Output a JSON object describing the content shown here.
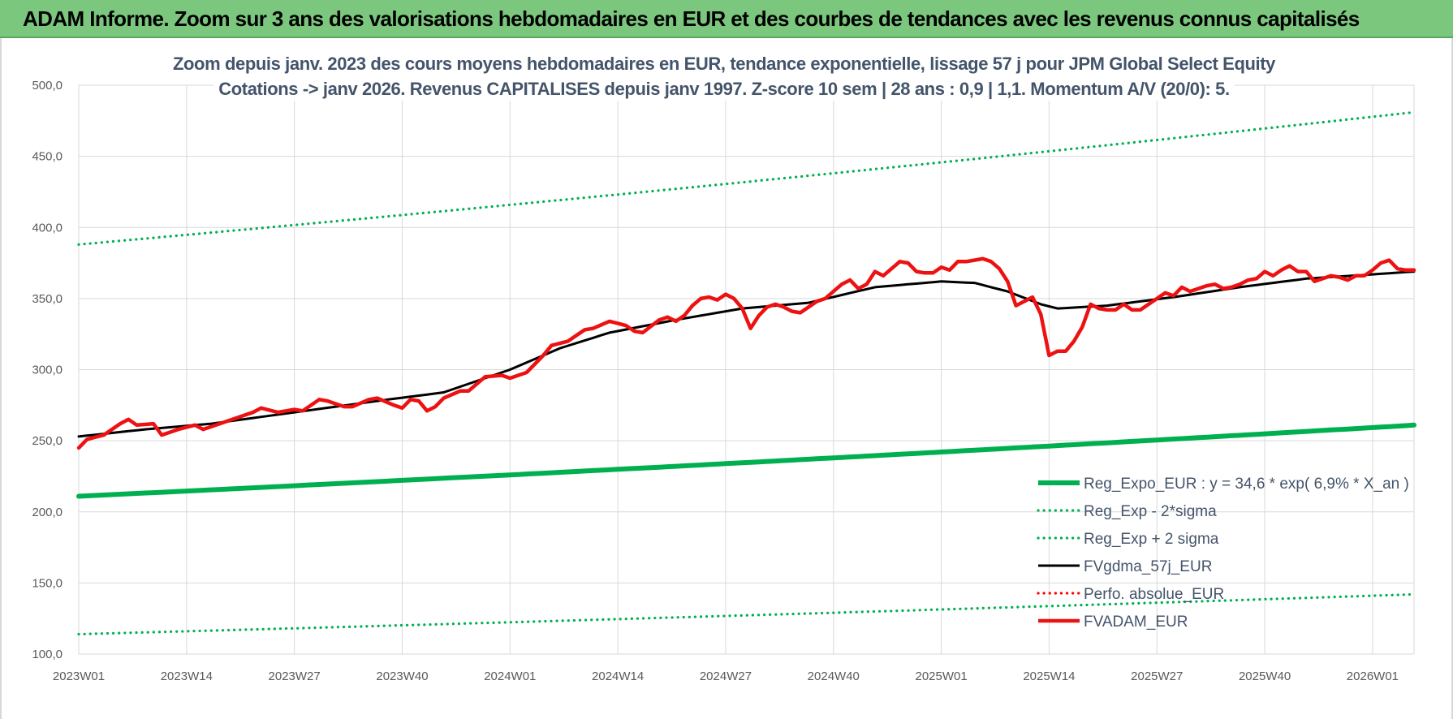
{
  "banner": {
    "title": "ADAM Informe. Zoom sur 3 ans des valorisations hebdomadaires en EUR et des courbes de tendances avec les revenus connus capitalisés",
    "bg_color": "#7bc77e"
  },
  "chart_data": {
    "type": "line",
    "title": [
      "Zoom depuis janv. 2023 des cours moyens hebdomadaires en EUR, tendance exponentielle, lissage 57 j pour JPM Global Select Equity",
      "Cotations -> janv 2026. Revenus CAPITALISES depuis janv 1997. Z-score 10 sem | 28 ans : 0,9 | 1,1. Momentum A/V (20/0): 5."
    ],
    "xlabel": "",
    "ylabel": "",
    "ylim": [
      100,
      500
    ],
    "yticks": [
      100,
      150,
      200,
      250,
      300,
      350,
      400,
      450,
      500
    ],
    "ytick_labels": [
      "100,0",
      "150,0",
      "200,0",
      "250,0",
      "300,0",
      "350,0",
      "400,0",
      "450,0",
      "500,0"
    ],
    "n_weeks": 162,
    "xtick_indices": [
      0,
      13,
      26,
      39,
      52,
      65,
      78,
      91,
      104,
      117,
      130,
      143,
      156
    ],
    "xtick_labels": [
      "2023W01",
      "2023W14",
      "2023W27",
      "2023W40",
      "2024W01",
      "2024W14",
      "2024W27",
      "2024W40",
      "2025W01",
      "2025W14",
      "2025W27",
      "2025W40",
      "2026W01"
    ],
    "grid": true,
    "legend_position": "bottom-right",
    "series": [
      {
        "name": "Reg_Expo_EUR : y = 34,6 * exp( 6,9% *  X_an )",
        "style": "solid-thick",
        "color": "#00b050",
        "start": 211,
        "end": 261,
        "growth": "exponential"
      },
      {
        "name": "Reg_Exp - 2*sigma",
        "style": "dotted",
        "color": "#00b050",
        "start": 114,
        "end": 142,
        "growth": "exponential"
      },
      {
        "name": "Reg_Exp + 2 sigma",
        "style": "dotted",
        "color": "#00b050",
        "start": 388,
        "end": 481,
        "growth": "exponential"
      },
      {
        "name": "FVgdma_57j_EUR",
        "style": "solid",
        "color": "#000000",
        "anchors": [
          [
            0,
            253
          ],
          [
            8,
            258
          ],
          [
            16,
            262
          ],
          [
            26,
            270
          ],
          [
            36,
            278
          ],
          [
            44,
            284
          ],
          [
            52,
            300
          ],
          [
            58,
            315
          ],
          [
            64,
            326
          ],
          [
            72,
            335
          ],
          [
            80,
            343
          ],
          [
            88,
            347
          ],
          [
            96,
            358
          ],
          [
            104,
            362
          ],
          [
            108,
            361
          ],
          [
            112,
            355
          ],
          [
            116,
            346
          ],
          [
            118,
            343
          ],
          [
            124,
            345
          ],
          [
            132,
            351
          ],
          [
            140,
            358
          ],
          [
            148,
            364
          ],
          [
            156,
            367
          ],
          [
            161,
            369
          ]
        ]
      },
      {
        "name": "Perfo. absolue_EUR",
        "style": "dotted",
        "color": "#ff0000",
        "hidden_in_plot": true
      },
      {
        "name": "FVADAM_EUR",
        "style": "solid-thick",
        "color": "#ee1111",
        "anchors": [
          [
            0,
            245
          ],
          [
            1,
            251
          ],
          [
            3,
            254
          ],
          [
            5,
            262
          ],
          [
            6,
            265
          ],
          [
            7,
            261
          ],
          [
            9,
            262
          ],
          [
            10,
            254
          ],
          [
            12,
            258
          ],
          [
            14,
            261
          ],
          [
            15,
            258
          ],
          [
            17,
            262
          ],
          [
            19,
            266
          ],
          [
            21,
            270
          ],
          [
            22,
            273
          ],
          [
            24,
            270
          ],
          [
            26,
            272
          ],
          [
            27,
            271
          ],
          [
            29,
            279
          ],
          [
            30,
            278
          ],
          [
            32,
            274
          ],
          [
            33,
            274
          ],
          [
            35,
            279
          ],
          [
            36,
            280
          ],
          [
            38,
            275
          ],
          [
            39,
            273
          ],
          [
            40,
            279
          ],
          [
            41,
            278
          ],
          [
            42,
            271
          ],
          [
            43,
            274
          ],
          [
            44,
            280
          ],
          [
            46,
            285
          ],
          [
            47,
            285
          ],
          [
            49,
            295
          ],
          [
            51,
            296
          ],
          [
            52,
            294
          ],
          [
            54,
            298
          ],
          [
            56,
            310
          ],
          [
            57,
            317
          ],
          [
            59,
            320
          ],
          [
            61,
            328
          ],
          [
            62,
            329
          ],
          [
            64,
            334
          ],
          [
            66,
            331
          ],
          [
            67,
            327
          ],
          [
            68,
            326
          ],
          [
            70,
            335
          ],
          [
            71,
            337
          ],
          [
            72,
            334
          ],
          [
            73,
            338
          ],
          [
            74,
            345
          ],
          [
            75,
            350
          ],
          [
            76,
            351
          ],
          [
            77,
            349
          ],
          [
            78,
            353
          ],
          [
            79,
            350
          ],
          [
            80,
            343
          ],
          [
            81,
            329
          ],
          [
            82,
            338
          ],
          [
            83,
            344
          ],
          [
            84,
            346
          ],
          [
            85,
            344
          ],
          [
            86,
            341
          ],
          [
            87,
            340
          ],
          [
            88,
            344
          ],
          [
            89,
            348
          ],
          [
            90,
            350
          ],
          [
            91,
            355
          ],
          [
            92,
            360
          ],
          [
            93,
            363
          ],
          [
            94,
            357
          ],
          [
            95,
            360
          ],
          [
            96,
            369
          ],
          [
            97,
            366
          ],
          [
            98,
            371
          ],
          [
            99,
            376
          ],
          [
            100,
            375
          ],
          [
            101,
            369
          ],
          [
            102,
            368
          ],
          [
            103,
            368
          ],
          [
            104,
            372
          ],
          [
            105,
            370
          ],
          [
            106,
            376
          ],
          [
            107,
            376
          ],
          [
            108,
            377
          ],
          [
            109,
            378
          ],
          [
            110,
            376
          ],
          [
            111,
            371
          ],
          [
            112,
            362
          ],
          [
            113,
            345
          ],
          [
            114,
            348
          ],
          [
            115,
            351
          ],
          [
            116,
            339
          ],
          [
            117,
            310
          ],
          [
            118,
            313
          ],
          [
            119,
            313
          ],
          [
            120,
            320
          ],
          [
            121,
            330
          ],
          [
            122,
            346
          ],
          [
            123,
            343
          ],
          [
            124,
            342
          ],
          [
            125,
            342
          ],
          [
            126,
            346
          ],
          [
            127,
            342
          ],
          [
            128,
            342
          ],
          [
            129,
            346
          ],
          [
            130,
            350
          ],
          [
            131,
            354
          ],
          [
            132,
            352
          ],
          [
            133,
            358
          ],
          [
            134,
            355
          ],
          [
            135,
            357
          ],
          [
            136,
            359
          ],
          [
            137,
            360
          ],
          [
            138,
            357
          ],
          [
            139,
            358
          ],
          [
            140,
            360
          ],
          [
            141,
            363
          ],
          [
            142,
            364
          ],
          [
            143,
            369
          ],
          [
            144,
            366
          ],
          [
            145,
            370
          ],
          [
            146,
            373
          ],
          [
            147,
            369
          ],
          [
            148,
            369
          ],
          [
            149,
            362
          ],
          [
            150,
            364
          ],
          [
            151,
            366
          ],
          [
            152,
            365
          ],
          [
            153,
            363
          ],
          [
            154,
            366
          ],
          [
            155,
            366
          ],
          [
            156,
            370
          ],
          [
            157,
            375
          ],
          [
            158,
            377
          ],
          [
            159,
            371
          ],
          [
            160,
            370
          ],
          [
            161,
            370
          ]
        ]
      }
    ]
  }
}
